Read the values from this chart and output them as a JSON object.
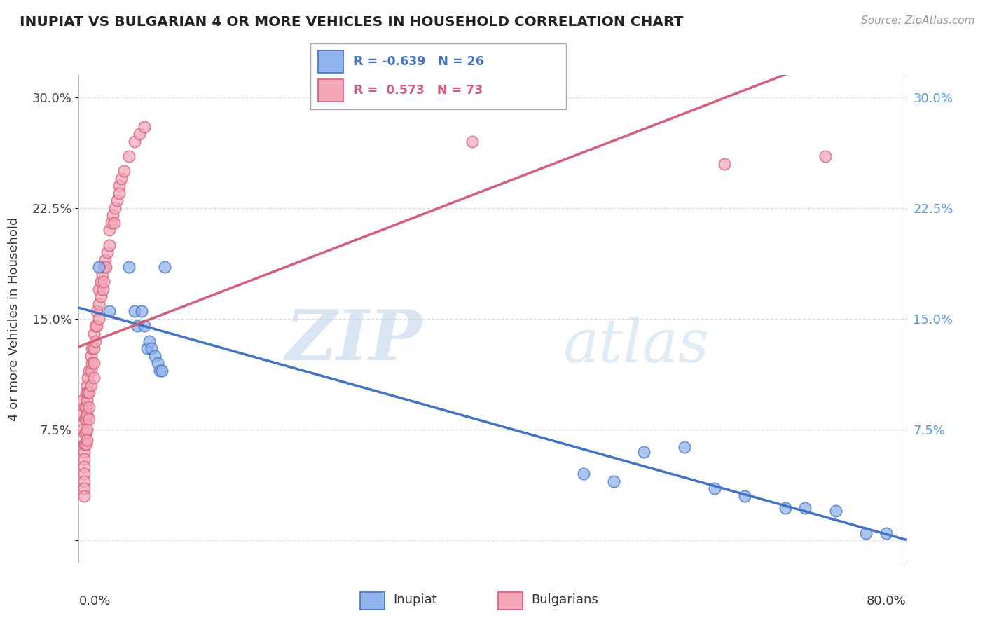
{
  "title": "INUPIAT VS BULGARIAN 4 OR MORE VEHICLES IN HOUSEHOLD CORRELATION CHART",
  "source_text": "Source: ZipAtlas.com",
  "ylabel": "4 or more Vehicles in Household",
  "ytick_vals": [
    0.0,
    0.075,
    0.15,
    0.225,
    0.3
  ],
  "ytick_labels": [
    "",
    "7.5%",
    "15.0%",
    "22.5%",
    "30.0%"
  ],
  "xlim": [
    0.0,
    0.82
  ],
  "ylim": [
    -0.015,
    0.315
  ],
  "watermark_zip": "ZIP",
  "watermark_atlas": "atlas",
  "blue_color": "#92B4EC",
  "pink_color": "#F4A7B9",
  "blue_edge": "#4472C4",
  "pink_edge": "#D45F7A",
  "inupiat_x": [
    0.02,
    0.03,
    0.05,
    0.055,
    0.058,
    0.062,
    0.065,
    0.068,
    0.07,
    0.072,
    0.075,
    0.078,
    0.08,
    0.082,
    0.085,
    0.5,
    0.53,
    0.56,
    0.6,
    0.63,
    0.66,
    0.7,
    0.72,
    0.75,
    0.78,
    0.8
  ],
  "inupiat_y": [
    0.185,
    0.155,
    0.185,
    0.155,
    0.145,
    0.155,
    0.145,
    0.13,
    0.135,
    0.13,
    0.125,
    0.12,
    0.115,
    0.115,
    0.185,
    0.045,
    0.04,
    0.06,
    0.063,
    0.035,
    0.03,
    0.022,
    0.022,
    0.02,
    0.005,
    0.005
  ],
  "bulgarian_x": [
    0.003,
    0.004,
    0.004,
    0.005,
    0.005,
    0.005,
    0.005,
    0.005,
    0.005,
    0.005,
    0.005,
    0.006,
    0.006,
    0.006,
    0.006,
    0.007,
    0.007,
    0.007,
    0.007,
    0.007,
    0.008,
    0.008,
    0.008,
    0.008,
    0.008,
    0.009,
    0.009,
    0.01,
    0.01,
    0.01,
    0.01,
    0.012,
    0.012,
    0.012,
    0.013,
    0.013,
    0.015,
    0.015,
    0.015,
    0.015,
    0.016,
    0.016,
    0.018,
    0.018,
    0.02,
    0.02,
    0.02,
    0.022,
    0.022,
    0.023,
    0.024,
    0.025,
    0.025,
    0.026,
    0.027,
    0.028,
    0.03,
    0.03,
    0.032,
    0.034,
    0.035,
    0.036,
    0.038,
    0.04,
    0.04,
    0.042,
    0.045,
    0.05,
    0.055,
    0.06,
    0.065,
    0.39,
    0.64,
    0.74
  ],
  "bulgarian_y": [
    0.085,
    0.095,
    0.075,
    0.065,
    0.06,
    0.055,
    0.05,
    0.045,
    0.04,
    0.035,
    0.03,
    0.09,
    0.082,
    0.072,
    0.065,
    0.1,
    0.09,
    0.082,
    0.073,
    0.065,
    0.105,
    0.095,
    0.085,
    0.075,
    0.068,
    0.11,
    0.1,
    0.115,
    0.1,
    0.09,
    0.082,
    0.125,
    0.115,
    0.105,
    0.13,
    0.12,
    0.14,
    0.13,
    0.12,
    0.11,
    0.145,
    0.135,
    0.155,
    0.145,
    0.17,
    0.16,
    0.15,
    0.175,
    0.165,
    0.18,
    0.17,
    0.185,
    0.175,
    0.19,
    0.185,
    0.195,
    0.21,
    0.2,
    0.215,
    0.22,
    0.215,
    0.225,
    0.23,
    0.24,
    0.235,
    0.245,
    0.25,
    0.26,
    0.27,
    0.275,
    0.28,
    0.27,
    0.255,
    0.26
  ]
}
